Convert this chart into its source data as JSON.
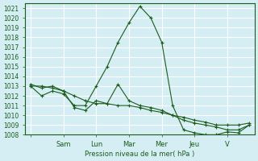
{
  "background_color": "#d4eef4",
  "grid_color": "#ffffff",
  "line_color": "#1a5c1a",
  "marker_color": "#1a5c1a",
  "xlabel": "Pression niveau de la mer( hPa )",
  "ylim": [
    1008,
    1021.5
  ],
  "yticks": [
    1008,
    1009,
    1010,
    1011,
    1012,
    1013,
    1014,
    1015,
    1016,
    1017,
    1018,
    1019,
    1020,
    1021
  ],
  "xtick_positions": [
    0,
    3,
    6,
    9,
    12,
    15,
    18
  ],
  "xtick_labels": [
    "",
    "Sam",
    "Lun",
    "Mar",
    "Mer",
    "Jeu",
    "V"
  ],
  "series": [
    [
      1013.0,
      1012.0,
      1012.5,
      1012.2,
      1011.0,
      1011.0,
      1013.0,
      1015.0,
      1017.5,
      1019.5,
      1021.2,
      1020.0,
      1017.5,
      1011.0,
      1008.5,
      1008.2,
      1008.0,
      1008.0,
      1008.3,
      1008.2,
      1009.0
    ],
    [
      1013.2,
      1012.8,
      1013.0,
      1012.5,
      1012.0,
      1011.5,
      1011.2,
      1011.2,
      1013.2,
      1011.5,
      1011.0,
      1010.8,
      1010.5,
      1010.0,
      1009.5,
      1009.2,
      1009.0,
      1008.8,
      1008.5,
      1008.5,
      1009.0
    ],
    [
      1013.0,
      1013.0,
      1012.8,
      1012.5,
      1010.8,
      1010.5,
      1011.5,
      1011.2,
      1011.0,
      1011.0,
      1010.8,
      1010.5,
      1010.3,
      1010.0,
      1009.8,
      1009.5,
      1009.3,
      1009.0,
      1009.0,
      1009.0,
      1009.2
    ]
  ],
  "n_points": 21
}
